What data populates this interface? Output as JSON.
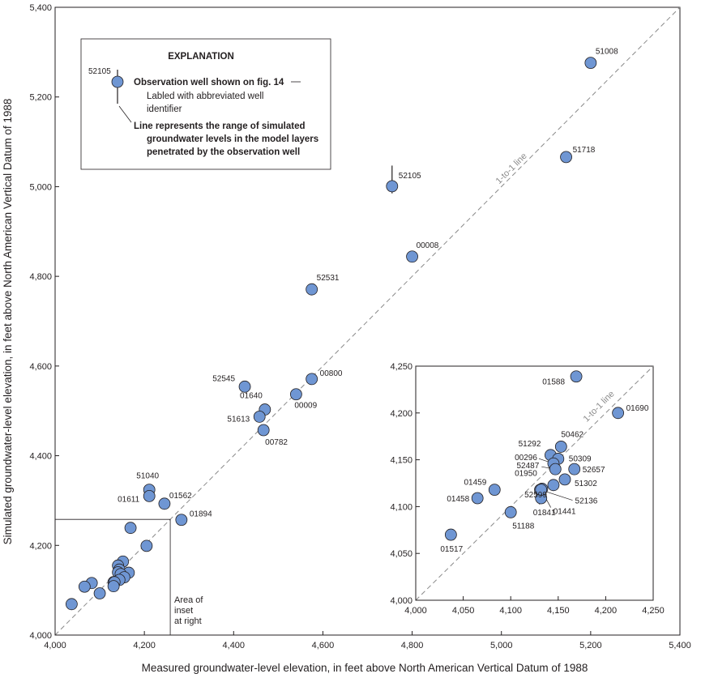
{
  "chart_data": [
    {
      "type": "scatter",
      "xlabel": "Measured groundwater-level elevation, in feet above North American Vertical Datum of 1988",
      "ylabel": "Simulated groundwater-level elevation, in feet above North American Vertical Datum of 1988",
      "xlim": [
        4000,
        5400
      ],
      "ylim": [
        4000,
        5400
      ],
      "x_ticks": [
        "4,000",
        "4,200",
        "4,400",
        "4,600",
        "4,800",
        "5,000",
        "5,200",
        "5,400"
      ],
      "y_ticks": [
        "4,000",
        "4,200",
        "4,400",
        "4,600",
        "4,800",
        "5,000",
        "5,200",
        "5,400"
      ],
      "grid": false,
      "one_to_one_label": "1-to-1 line",
      "marker_color": "#6f96d3",
      "labeled_points": [
        {
          "label": "51008",
          "x": 5200,
          "y": 5276
        },
        {
          "label": "51718",
          "x": 5145,
          "y": 5066
        },
        {
          "label": "52105",
          "x": 4755,
          "y": 5001,
          "range_low": 4985,
          "range_high": 5047
        },
        {
          "label": "00008",
          "x": 4800,
          "y": 4844
        },
        {
          "label": "52531",
          "x": 4575,
          "y": 4771
        },
        {
          "label": "00800",
          "x": 4575,
          "y": 4571
        },
        {
          "label": "52545",
          "x": 4425,
          "y": 4554
        },
        {
          "label": "01640",
          "x": 4470,
          "y": 4503
        },
        {
          "label": "00009",
          "x": 4540,
          "y": 4537
        },
        {
          "label": "51613",
          "x": 4458,
          "y": 4487
        },
        {
          "label": "00782",
          "x": 4467,
          "y": 4457
        },
        {
          "label": "51040",
          "x": 4211,
          "y": 4324
        },
        {
          "label": "01611",
          "x": 4211,
          "y": 4310
        },
        {
          "label": "01562",
          "x": 4245,
          "y": 4293
        },
        {
          "label": "01894",
          "x": 4283,
          "y": 4257
        }
      ],
      "unlabeled_points": [
        {
          "x": 4169,
          "y": 4239
        },
        {
          "x": 4205,
          "y": 4199
        },
        {
          "x": 4152,
          "y": 4164
        },
        {
          "x": 4141,
          "y": 4155
        },
        {
          "x": 4144,
          "y": 4146
        },
        {
          "x": 4141,
          "y": 4140
        },
        {
          "x": 4165,
          "y": 4139
        },
        {
          "x": 4147,
          "y": 4136
        },
        {
          "x": 4155,
          "y": 4129
        },
        {
          "x": 4144,
          "y": 4123
        },
        {
          "x": 4131,
          "y": 4118
        },
        {
          "x": 4133,
          "y": 4118
        },
        {
          "x": 4131,
          "y": 4109
        },
        {
          "x": 4082,
          "y": 4116
        },
        {
          "x": 4066,
          "y": 4108
        },
        {
          "x": 4100,
          "y": 4093
        },
        {
          "x": 4037,
          "y": 4069
        }
      ],
      "inset_area_note": [
        "Area of",
        "inset",
        "at right"
      ],
      "inset_area": {
        "x": [
          4000,
          4258
        ],
        "y": [
          4000,
          4258
        ]
      }
    },
    {
      "type": "scatter",
      "xlim": [
        4000,
        4250
      ],
      "ylim": [
        4000,
        4250
      ],
      "x_ticks": [
        "4,000",
        "4,050",
        "4,100",
        "4,150",
        "4,200",
        "4,250"
      ],
      "y_ticks": [
        "4,000",
        "4,050",
        "4,100",
        "4,150",
        "4,200",
        "4,250"
      ],
      "one_to_one_label": "1-to-1 line",
      "points": [
        {
          "label": "01588",
          "x": 4169,
          "y": 4239
        },
        {
          "label": "01690",
          "x": 4213,
          "y": 4200
        },
        {
          "label": "50462",
          "x": 4153,
          "y": 4164
        },
        {
          "label": "51292",
          "x": 4142,
          "y": 4155
        },
        {
          "label": "50309",
          "x": 4150,
          "y": 4151
        },
        {
          "label": "00296",
          "x": 4145,
          "y": 4146
        },
        {
          "label": "52487",
          "x": 4147,
          "y": 4140
        },
        {
          "label": "52657",
          "x": 4167,
          "y": 4140
        },
        {
          "label": "51302",
          "x": 4157,
          "y": 4129
        },
        {
          "label": "01459",
          "x": 4083,
          "y": 4118
        },
        {
          "label": "01950",
          "x": 4133,
          "y": 4119
        },
        {
          "label": "52599",
          "x": 4145,
          "y": 4123
        },
        {
          "label": "52136",
          "x": 4131,
          "y": 4118
        },
        {
          "label": "01458",
          "x": 4065,
          "y": 4109
        },
        {
          "label": "01841",
          "x": 4132,
          "y": 4109
        },
        {
          "label": "01441",
          "x": 4132,
          "y": 4118
        },
        {
          "label": "51188",
          "x": 4100,
          "y": 4094
        },
        {
          "label": "01517",
          "x": 4037,
          "y": 4070
        }
      ]
    }
  ],
  "explanation": {
    "title": "EXPLANATION",
    "sample_id": "52105",
    "well_line": "Observation well shown on fig. 14",
    "labeled_line_1": "Labled with abbreviated well",
    "labeled_line_2": "identifier",
    "range_line_1": "Line represents the range of simulated",
    "range_line_2": "groundwater levels in the model layers",
    "range_line_3": "penetrated by the observation well"
  }
}
